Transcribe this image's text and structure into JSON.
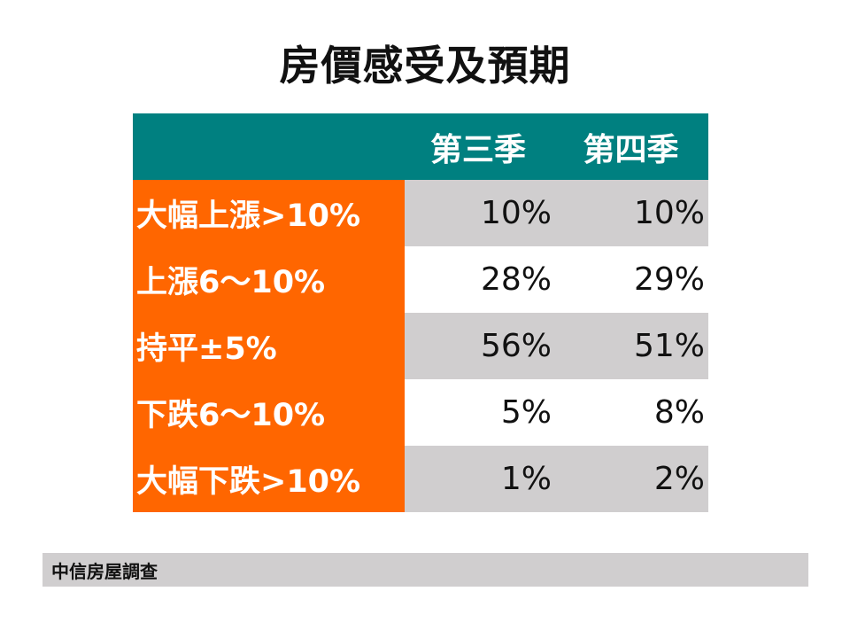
{
  "title": "房價感受及預期",
  "source": "中信房屋調查",
  "colors": {
    "header_bg": "#008080",
    "label_bg": "#ff6600",
    "shaded_row": "#d0cecf"
  },
  "chart_data": {
    "type": "table",
    "columns": [
      "",
      "第三季",
      "第四季"
    ],
    "rows": [
      {
        "label": "大幅上漲>10%",
        "values": [
          "10%",
          "10%"
        ]
      },
      {
        "label": "上漲6～10%",
        "values": [
          "28%",
          "29%"
        ]
      },
      {
        "label": "持平±5%",
        "values": [
          "56%",
          "51%"
        ]
      },
      {
        "label": "下跌6～10%",
        "values": [
          "5%",
          "8%"
        ]
      },
      {
        "label": "大幅下跌>10%",
        "values": [
          "1%",
          "2%"
        ]
      }
    ]
  }
}
